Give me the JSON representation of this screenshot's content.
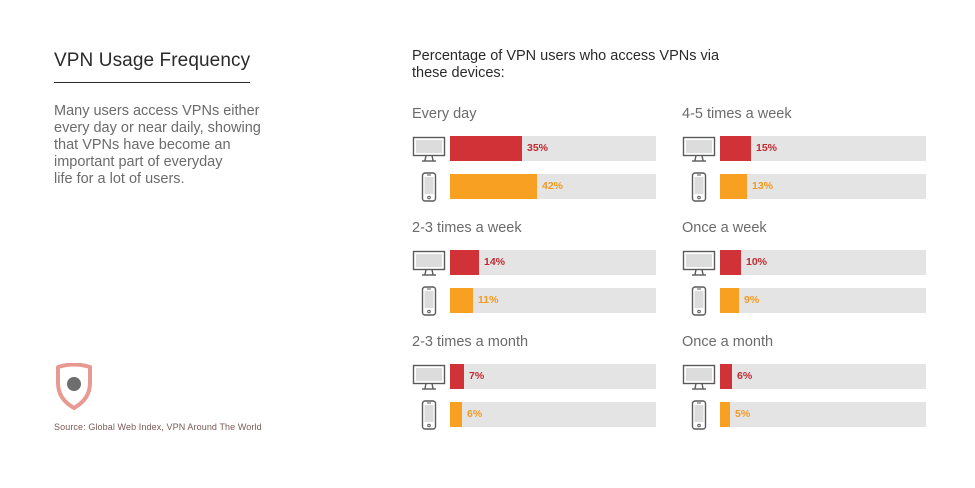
{
  "title": "VPN Usage Frequency",
  "description_lines": [
    "Many users access VPNs either",
    "every day or near daily, showing",
    "that VPNs have become an",
    "important part of everyday",
    "life for a lot of users."
  ],
  "source": "Source: Global Web Index, VPN Around The World",
  "chart_title_lines": [
    "Percentage of VPN users who access VPNs via",
    "these devices:"
  ],
  "colors": {
    "desktop": "#d03238",
    "mobile": "#f7a022",
    "track": "#e4e4e4"
  },
  "chart_data": {
    "type": "bar",
    "orientation": "horizontal",
    "title": "Percentage of VPN users who access VPNs via these devices:",
    "xlim": [
      0,
      100
    ],
    "unit": "%",
    "series_names": [
      "Desktop / computer",
      "Mobile / smartphone"
    ],
    "categories": [
      "Every day",
      "4-5 times a week",
      "2-3 times a week",
      "Once a week",
      "2-3 times a month",
      "Once a month"
    ],
    "groups": [
      {
        "label": "Every day",
        "desktop": 35,
        "mobile": 42
      },
      {
        "label": "4-5 times a week",
        "desktop": 15,
        "mobile": 13
      },
      {
        "label": "2-3 times a week",
        "desktop": 14,
        "mobile": 11
      },
      {
        "label": "Once a week",
        "desktop": 10,
        "mobile": 9
      },
      {
        "label": "2-3 times a month",
        "desktop": 7,
        "mobile": 6
      },
      {
        "label": "Once a month",
        "desktop": 6,
        "mobile": 5
      }
    ]
  }
}
